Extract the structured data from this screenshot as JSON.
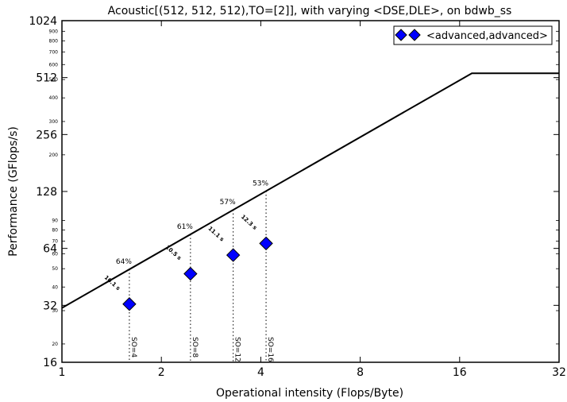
{
  "chart_data": {
    "type": "scatter",
    "title": "Acoustic[(512, 512, 512),TO=[2]], with varying <DSE,DLE>, on bdwb_ss",
    "xlabel": "Operational intensity (Flops/Byte)",
    "ylabel": "Performance (GFlops/s)",
    "x_scale": "log2",
    "y_scale": "log2",
    "xlim": [
      1,
      32
    ],
    "ylim": [
      16,
      1024
    ],
    "x_ticks": [
      "1",
      "2",
      "4",
      "8",
      "16",
      "32"
    ],
    "y_ticks": [
      "16",
      "32",
      "64",
      "128",
      "256",
      "512",
      "1024"
    ],
    "y_minor_ticks": [
      "20",
      "30",
      "40",
      "50",
      "60",
      "70",
      "80",
      "90",
      "200",
      "300",
      "400",
      "500",
      "600",
      "700",
      "800",
      "900"
    ],
    "roofline": {
      "bandwidth": 31,
      "peak": 540,
      "color": "#000000"
    },
    "legend": {
      "position": "top-right",
      "label": "<advanced,advanced>"
    },
    "series": [
      {
        "name": "<advanced,advanced>",
        "color": "#0000ff",
        "marker": "diamond",
        "points": [
          {
            "x": 1.6,
            "y": 32.5,
            "time": "10.1 s",
            "pct": "64%",
            "so": "SO=4"
          },
          {
            "x": 2.45,
            "y": 47,
            "time": "10.5 s",
            "pct": "61%",
            "so": "SO=8"
          },
          {
            "x": 3.3,
            "y": 59,
            "time": "11.1 s",
            "pct": "57%",
            "so": "SO=12"
          },
          {
            "x": 4.15,
            "y": 68,
            "time": "12.3 s",
            "pct": "53%",
            "so": "SO=16"
          }
        ]
      }
    ]
  }
}
